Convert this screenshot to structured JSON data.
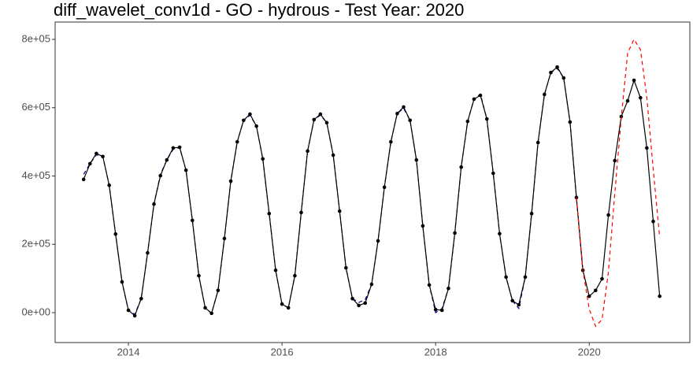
{
  "chart_data": {
    "type": "line",
    "title": "diff_wavelet_conv1d - GO - hydrous - Test Year: 2020",
    "x": [
      2013.417,
      2013.5,
      2013.583,
      2013.667,
      2013.75,
      2013.833,
      2013.917,
      2014.0,
      2014.083,
      2014.167,
      2014.25,
      2014.333,
      2014.417,
      2014.5,
      2014.583,
      2014.667,
      2014.75,
      2014.833,
      2014.917,
      2015.0,
      2015.083,
      2015.167,
      2015.25,
      2015.333,
      2015.417,
      2015.5,
      2015.583,
      2015.667,
      2015.75,
      2015.833,
      2015.917,
      2016.0,
      2016.083,
      2016.167,
      2016.25,
      2016.333,
      2016.417,
      2016.5,
      2016.583,
      2016.667,
      2016.75,
      2016.833,
      2016.917,
      2017.0,
      2017.083,
      2017.167,
      2017.25,
      2017.333,
      2017.417,
      2017.5,
      2017.583,
      2017.667,
      2017.75,
      2017.833,
      2017.917,
      2018.0,
      2018.083,
      2018.167,
      2018.25,
      2018.333,
      2018.417,
      2018.5,
      2018.583,
      2018.667,
      2018.75,
      2018.833,
      2018.917,
      2019.0,
      2019.083,
      2019.167,
      2019.25,
      2019.333,
      2019.417,
      2019.5,
      2019.583,
      2019.667,
      2019.75,
      2019.833,
      2019.917,
      2020.0,
      2020.083,
      2020.167,
      2020.25,
      2020.333,
      2020.417,
      2020.5,
      2020.583,
      2020.667,
      2020.75,
      2020.833,
      2020.917
    ],
    "series": [
      {
        "color": "#00008b",
        "dashed": true,
        "markers": false,
        "values": [
          405000,
          436000,
          462000,
          457000,
          373000,
          230000,
          90000,
          7000,
          -5000,
          41000,
          175000,
          318000,
          405000,
          447000,
          478000,
          484000,
          417000,
          270000,
          108000,
          14000,
          -2000,
          65000,
          217000,
          385000,
          500000,
          563000,
          578000,
          546000,
          450000,
          290000,
          124000,
          25000,
          14000,
          108000,
          293000,
          473000,
          565000,
          578000,
          556000,
          461000,
          297000,
          131000,
          41000,
          30000,
          38000,
          83000,
          210000,
          367000,
          500000,
          583000,
          598000,
          563000,
          447000,
          254000,
          81000,
          0,
          12000,
          71000,
          233000,
          426000,
          560000,
          625000,
          640000,
          567000,
          408000,
          231000,
          104000,
          35000,
          12000,
          104000,
          290000,
          498000,
          639000,
          703000,
          715000,
          687000,
          558000,
          337000,
          124000,
          null,
          null,
          null,
          null,
          null,
          null,
          null,
          null,
          null,
          null,
          null,
          null
        ]
      },
      {
        "color": "#000000",
        "dashed": false,
        "markers": true,
        "values": [
          390000,
          436000,
          466000,
          457000,
          373000,
          230000,
          90000,
          7000,
          -9000,
          41000,
          175000,
          318000,
          401000,
          447000,
          482000,
          484000,
          417000,
          270000,
          108000,
          14000,
          -2000,
          65000,
          217000,
          385000,
          500000,
          563000,
          581000,
          546000,
          450000,
          290000,
          124000,
          25000,
          14000,
          108000,
          293000,
          473000,
          565000,
          581000,
          556000,
          461000,
          297000,
          131000,
          41000,
          21000,
          28000,
          83000,
          210000,
          367000,
          500000,
          583000,
          602000,
          563000,
          447000,
          254000,
          81000,
          9000,
          7000,
          71000,
          233000,
          426000,
          560000,
          625000,
          636000,
          567000,
          408000,
          231000,
          104000,
          35000,
          23000,
          104000,
          290000,
          498000,
          639000,
          703000,
          719000,
          687000,
          558000,
          337000,
          124000,
          48000,
          65000,
          99000,
          286000,
          445000,
          574000,
          620000,
          680000,
          629000,
          482000,
          267000,
          48000
        ]
      },
      {
        "color": "#ff0000",
        "dashed": true,
        "markers": false,
        "values": [
          null,
          null,
          null,
          null,
          null,
          null,
          null,
          null,
          null,
          null,
          null,
          null,
          null,
          null,
          null,
          null,
          null,
          null,
          null,
          null,
          null,
          null,
          null,
          null,
          null,
          null,
          null,
          null,
          null,
          null,
          null,
          null,
          null,
          null,
          null,
          null,
          null,
          null,
          null,
          null,
          null,
          null,
          null,
          null,
          null,
          null,
          null,
          null,
          null,
          null,
          null,
          null,
          null,
          null,
          null,
          null,
          null,
          null,
          null,
          null,
          null,
          null,
          null,
          null,
          null,
          null,
          null,
          null,
          null,
          null,
          null,
          null,
          null,
          null,
          null,
          null,
          null,
          337000,
          124000,
          10000,
          -40000,
          -20000,
          120000,
          350000,
          570000,
          760000,
          800000,
          770000,
          630000,
          420000,
          220000
        ]
      }
    ],
    "xlim": [
      2013.046,
      2021.31
    ],
    "xticks": [
      2014,
      2016,
      2018,
      2020
    ],
    "ylim": [
      -87600,
      850700
    ],
    "yticks": [
      {
        "value": 0,
        "label": "0e+00"
      },
      {
        "value": 200000,
        "label": "2e+05"
      },
      {
        "value": 400000,
        "label": "4e+05"
      },
      {
        "value": 600000,
        "label": "6e+05"
      },
      {
        "value": 800000,
        "label": "8e+05"
      }
    ],
    "grid": false
  }
}
